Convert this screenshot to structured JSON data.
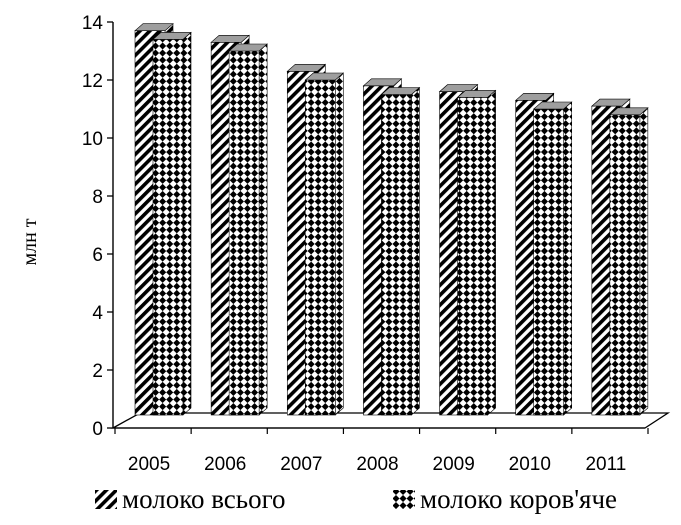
{
  "chart_data": {
    "type": "bar",
    "title": "",
    "xlabel": "",
    "ylabel": "млн т",
    "ylim": [
      0,
      14
    ],
    "yticks": [
      0,
      2,
      4,
      6,
      8,
      10,
      12,
      14
    ],
    "grid": false,
    "legend_position": "bottom",
    "categories": [
      "2005",
      "2006",
      "2007",
      "2008",
      "2009",
      "2010",
      "2011"
    ],
    "series": [
      {
        "name": "молоко всього",
        "pattern": "diagonal-stripes",
        "values": [
          13.7,
          13.3,
          12.3,
          11.8,
          11.6,
          11.3,
          11.1
        ]
      },
      {
        "name": "молоко коров'яче",
        "pattern": "diamond-checker",
        "values": [
          13.4,
          13.0,
          12.0,
          11.5,
          11.4,
          11.0,
          10.8
        ]
      }
    ]
  },
  "colors": {
    "bar_fill": "#000000",
    "bar_background": "#ffffff",
    "bar_top": "#9e9e9e",
    "axis": "#000000"
  }
}
